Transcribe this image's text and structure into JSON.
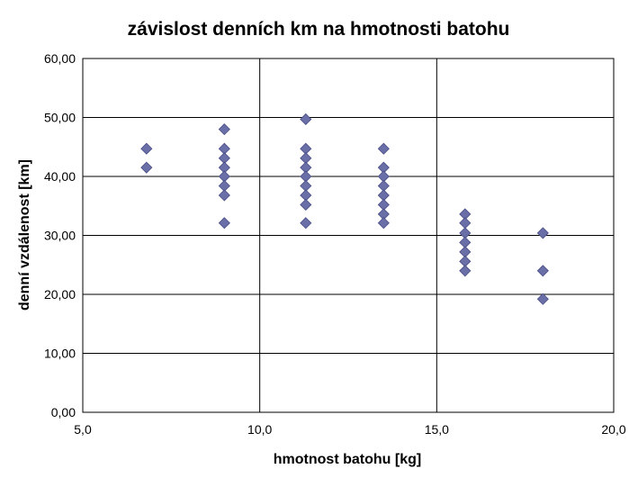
{
  "chart_data": {
    "type": "scatter",
    "title": "závislost denních km na hmotnosti batohu",
    "xlabel": "hmotnost batohu [kg]",
    "ylabel": "denní vzdálenost [km]",
    "xlim": [
      5,
      20
    ],
    "ylim": [
      0,
      60
    ],
    "x_ticks": [
      "5,0",
      "10,0",
      "15,0",
      "20,0"
    ],
    "y_ticks": [
      "0,00",
      "10,00",
      "20,00",
      "30,00",
      "40,00",
      "50,00",
      "60,00"
    ],
    "grid": "on",
    "legend": "none",
    "marker": "diamond",
    "colors": {
      "marker": "#6B6FA8",
      "marker_edge": "#4A4E86",
      "grid": "#000000"
    },
    "series": [
      {
        "points": [
          [
            6.8,
            44.7
          ],
          [
            6.8,
            41.5
          ],
          [
            9.0,
            48.0
          ],
          [
            9.0,
            44.7
          ],
          [
            9.0,
            43.1
          ],
          [
            9.0,
            41.5
          ],
          [
            9.0,
            40.0
          ],
          [
            9.0,
            38.4
          ],
          [
            9.0,
            36.8
          ],
          [
            9.0,
            32.1
          ],
          [
            11.3,
            49.7
          ],
          [
            11.3,
            44.7
          ],
          [
            11.3,
            43.1
          ],
          [
            11.3,
            41.5
          ],
          [
            11.3,
            40.0
          ],
          [
            11.3,
            38.4
          ],
          [
            11.3,
            36.8
          ],
          [
            11.3,
            35.2
          ],
          [
            11.3,
            32.1
          ],
          [
            13.5,
            44.7
          ],
          [
            13.5,
            41.5
          ],
          [
            13.5,
            40.0
          ],
          [
            13.5,
            38.4
          ],
          [
            13.5,
            36.8
          ],
          [
            13.5,
            35.2
          ],
          [
            13.5,
            33.6
          ],
          [
            13.5,
            32.1
          ],
          [
            15.8,
            33.6
          ],
          [
            15.8,
            32.1
          ],
          [
            15.8,
            30.4
          ],
          [
            15.8,
            28.8
          ],
          [
            15.8,
            27.2
          ],
          [
            15.8,
            25.6
          ],
          [
            15.8,
            24.0
          ],
          [
            18.0,
            30.4
          ],
          [
            18.0,
            24.0
          ],
          [
            18.0,
            19.2
          ]
        ]
      }
    ]
  }
}
